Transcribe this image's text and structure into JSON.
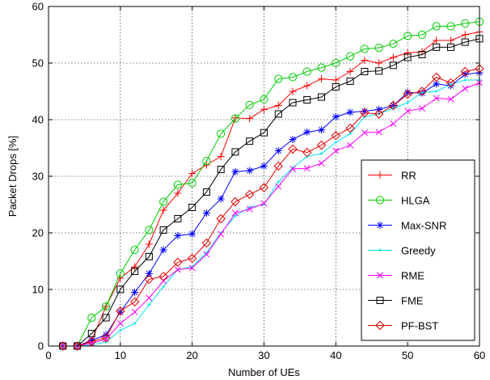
{
  "chart_data": {
    "type": "line",
    "title": "",
    "xlabel": "Number of UEs",
    "ylabel": "Packet Drops [%]",
    "xlim": [
      0,
      60
    ],
    "ylim": [
      0,
      60
    ],
    "xticks": [
      0,
      10,
      20,
      30,
      40,
      50,
      60
    ],
    "yticks": [
      0,
      10,
      20,
      30,
      40,
      50,
      60
    ],
    "grid": true,
    "legend_position": "right",
    "x": [
      2,
      4,
      6,
      8,
      10,
      12,
      14,
      16,
      18,
      20,
      22,
      24,
      26,
      28,
      30,
      32,
      34,
      36,
      38,
      40,
      42,
      44,
      46,
      48,
      50,
      52,
      54,
      56,
      58,
      60
    ],
    "series": [
      {
        "name": "RR",
        "color": "#ff0000",
        "marker": "plus",
        "values": [
          0,
          0,
          1.0,
          7.0,
          12.0,
          14.0,
          18.0,
          24.0,
          27.0,
          30.5,
          32.0,
          33.5,
          40.3,
          40.2,
          41.8,
          42.5,
          45.0,
          46.0,
          47.2,
          47.0,
          48.5,
          50.5,
          50.0,
          51.0,
          51.8,
          52.0,
          54.0,
          54.0,
          55.0,
          55.5
        ]
      },
      {
        "name": "HLGA",
        "color": "#00cc00",
        "marker": "circle",
        "values": [
          0,
          0,
          5.0,
          7.0,
          12.8,
          17.0,
          20.5,
          25.5,
          28.5,
          28.8,
          32.7,
          37.5,
          40.2,
          42.6,
          43.6,
          47.2,
          47.5,
          48.5,
          49.2,
          50.0,
          51.2,
          52.5,
          52.7,
          53.4,
          54.8,
          55.0,
          56.5,
          56.5,
          57.0,
          57.3
        ]
      },
      {
        "name": "Max-SNR",
        "color": "#0000ff",
        "marker": "asterisk",
        "values": [
          0,
          0,
          1.0,
          2.0,
          6.0,
          9.5,
          12.8,
          17.0,
          19.5,
          19.8,
          23.5,
          26.0,
          30.8,
          31.0,
          31.8,
          34.5,
          36.5,
          37.8,
          38.2,
          40.5,
          41.3,
          41.5,
          41.8,
          42.5,
          44.8,
          44.7,
          46.3,
          46.0,
          48.0,
          48.3
        ]
      },
      {
        "name": "Greedy",
        "color": "#00e5ee",
        "marker": "dot",
        "values": [
          0,
          0,
          0.2,
          0.7,
          2.8,
          4.0,
          7.3,
          10.5,
          13.5,
          14.0,
          16.5,
          20.0,
          23.0,
          24.5,
          25.0,
          29.0,
          31.5,
          33.5,
          34.0,
          36.0,
          37.5,
          40.5,
          41.0,
          42.0,
          43.0,
          44.8,
          45.0,
          46.2,
          47.0,
          47.0
        ]
      },
      {
        "name": "RME",
        "color": "#ff00ff",
        "marker": "x",
        "values": [
          0,
          0,
          0.5,
          1.2,
          4.0,
          6.0,
          8.5,
          11.5,
          13.5,
          13.8,
          16.2,
          19.8,
          23.5,
          24.2,
          25.2,
          28.2,
          31.3,
          31.4,
          32.3,
          34.5,
          35.5,
          37.7,
          37.8,
          39.3,
          41.5,
          42.0,
          43.8,
          43.6,
          45.5,
          46.5
        ]
      },
      {
        "name": "FME",
        "color": "#000000",
        "marker": "square",
        "values": [
          0,
          0,
          2.2,
          5.0,
          10.0,
          13.2,
          15.8,
          20.5,
          22.5,
          24.5,
          27.2,
          31.2,
          34.3,
          36.2,
          37.7,
          41.0,
          43.0,
          43.5,
          44.0,
          45.8,
          46.8,
          48.5,
          48.6,
          49.6,
          51.0,
          51.5,
          52.8,
          52.8,
          53.7,
          54.3
        ]
      },
      {
        "name": "PF-BST",
        "color": "#e00000",
        "marker": "diamond",
        "values": [
          0,
          0,
          0.8,
          1.5,
          6.2,
          7.8,
          11.8,
          12.3,
          14.8,
          15.5,
          18.2,
          22.5,
          25.5,
          26.8,
          28.0,
          31.8,
          34.8,
          34.2,
          35.5,
          37.2,
          38.5,
          41.2,
          41.0,
          42.5,
          44.5,
          45.0,
          47.5,
          46.5,
          48.5,
          49.0
        ]
      }
    ]
  }
}
